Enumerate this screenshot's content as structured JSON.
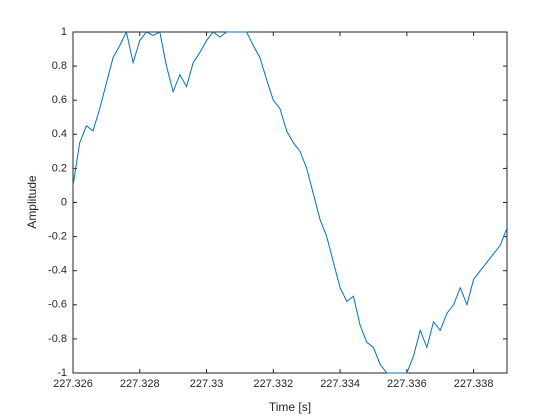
{
  "chart_data": {
    "type": "line",
    "xlabel": "Time [s]",
    "ylabel": "Amplitude",
    "x": [
      227.326,
      227.3262,
      227.3264,
      227.3266,
      227.3268,
      227.327,
      227.3272,
      227.3274,
      227.3276,
      227.3278,
      227.328,
      227.3282,
      227.3284,
      227.3286,
      227.3288,
      227.329,
      227.3292,
      227.3294,
      227.3296,
      227.3298,
      227.33,
      227.3302,
      227.3304,
      227.3306,
      227.3308,
      227.331,
      227.3312,
      227.3314,
      227.3316,
      227.3318,
      227.332,
      227.3322,
      227.3324,
      227.3326,
      227.3328,
      227.333,
      227.3332,
      227.3334,
      227.3336,
      227.3338,
      227.334,
      227.3342,
      227.3344,
      227.3346,
      227.3348,
      227.335,
      227.3352,
      227.3354,
      227.3356,
      227.3358,
      227.336,
      227.3362,
      227.3364,
      227.3366,
      227.3368,
      227.337,
      227.3372,
      227.3374,
      227.3376,
      227.3378,
      227.338,
      227.3382,
      227.3384,
      227.3386,
      227.3388,
      227.339
    ],
    "series": [
      {
        "color": "#0072bd",
        "values": [
          0.1,
          0.35,
          0.45,
          0.42,
          0.55,
          0.7,
          0.85,
          0.92,
          1,
          0.82,
          0.95,
          1,
          0.98,
          1,
          0.8,
          0.65,
          0.75,
          0.68,
          0.82,
          0.88,
          0.95,
          1,
          0.97,
          1,
          1,
          1,
          1,
          0.92,
          0.85,
          0.72,
          0.6,
          0.55,
          0.42,
          0.35,
          0.3,
          0.2,
          0.05,
          -0.1,
          -0.2,
          -0.35,
          -0.5,
          -0.58,
          -0.55,
          -0.72,
          -0.82,
          -0.85,
          -0.95,
          -1,
          -1,
          -1,
          -1,
          -0.9,
          -0.75,
          -0.85,
          -0.7,
          -0.75,
          -0.65,
          -0.6,
          -0.5,
          -0.6,
          -0.45,
          -0.4,
          -0.35,
          -0.3,
          -0.25,
          -0.15
        ]
      }
    ],
    "xlim": [
      227.326,
      227.339
    ],
    "xticks": [
      227.326,
      227.328,
      227.33,
      227.332,
      227.334,
      227.336,
      227.338
    ],
    "ylim": [
      -1,
      1
    ],
    "yticks": [
      -1,
      -0.8,
      -0.6,
      -0.4,
      -0.2,
      0,
      0.2,
      0.4,
      0.6,
      0.8,
      1
    ]
  }
}
